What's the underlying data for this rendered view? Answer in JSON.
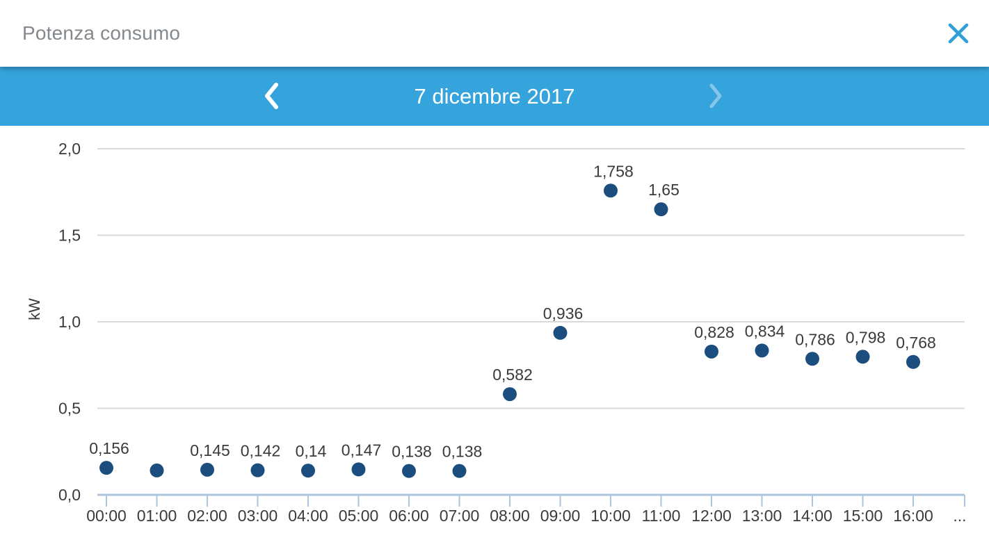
{
  "header": {
    "title": "Potenza consumo"
  },
  "date_nav": {
    "date_label": "7 dicembre 2017",
    "prev_icon": "chevron-left",
    "next_icon": "chevron-right"
  },
  "icons": {
    "close": "x-mark"
  },
  "colors": {
    "nav_bar_blue": "#36a4dc",
    "close_icon_blue": "#2d9fd9",
    "title_gray": "#84898d",
    "point_navy": "#1b4e7e",
    "value_label_dark": "#3a3a3a",
    "tick_label_dark": "#3b3b3b",
    "gridline_gray": "#d9d9d9",
    "axis_light_blue": "#abc6dd",
    "next_icon_disabled": "#84c7ea",
    "date_text_white": "#ffffff"
  },
  "chart_data": {
    "type": "scatter",
    "title": "",
    "xlabel": "",
    "ylabel": "kW",
    "ylim": [
      0,
      2.1
    ],
    "grid": true,
    "legend": "none",
    "y_ticks": [
      {
        "value": 0.0,
        "label": "0,0"
      },
      {
        "value": 0.5,
        "label": "0,5"
      },
      {
        "value": 1.0,
        "label": "1,0"
      },
      {
        "value": 1.5,
        "label": "1,5"
      },
      {
        "value": 2.0,
        "label": "2,0"
      }
    ],
    "points": [
      {
        "x": "00:00",
        "value": 0.156,
        "label": "0,156"
      },
      {
        "x": "01:00",
        "value": 0.141,
        "label": ""
      },
      {
        "x": "02:00",
        "value": 0.145,
        "label": "0,145"
      },
      {
        "x": "03:00",
        "value": 0.142,
        "label": "0,142"
      },
      {
        "x": "04:00",
        "value": 0.14,
        "label": "0,14"
      },
      {
        "x": "05:00",
        "value": 0.147,
        "label": "0,147"
      },
      {
        "x": "06:00",
        "value": 0.138,
        "label": "0,138"
      },
      {
        "x": "07:00",
        "value": 0.138,
        "label": "0,138"
      },
      {
        "x": "08:00",
        "value": 0.582,
        "label": "0,582"
      },
      {
        "x": "09:00",
        "value": 0.936,
        "label": "0,936"
      },
      {
        "x": "10:00",
        "value": 1.758,
        "label": "1,758"
      },
      {
        "x": "11:00",
        "value": 1.65,
        "label": "1,65"
      },
      {
        "x": "12:00",
        "value": 0.828,
        "label": "0,828"
      },
      {
        "x": "13:00",
        "value": 0.834,
        "label": "0,834"
      },
      {
        "x": "14:00",
        "value": 0.786,
        "label": "0,786"
      },
      {
        "x": "15:00",
        "value": 0.798,
        "label": "0,798"
      },
      {
        "x": "16:00",
        "value": 0.768,
        "label": "0,768"
      }
    ],
    "x_overflow_label": "..."
  }
}
